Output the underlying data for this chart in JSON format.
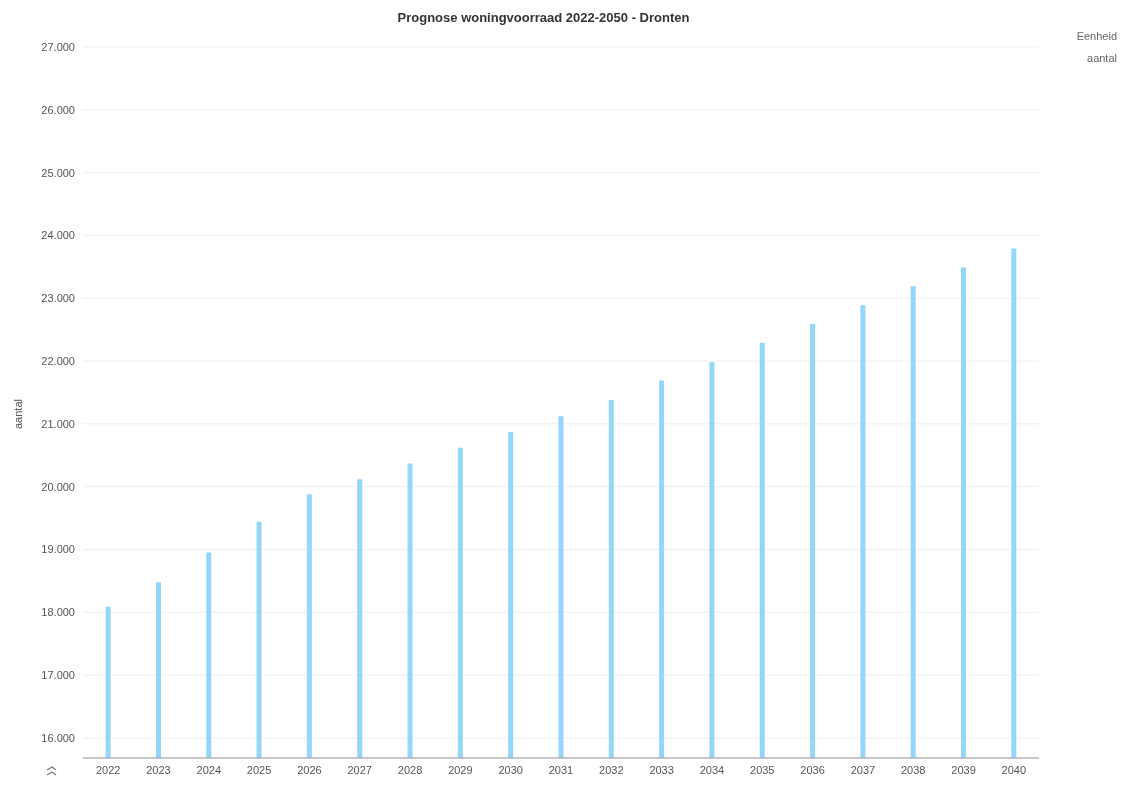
{
  "chart_data": {
    "type": "bar",
    "title": "Prognose woningvoorraad 2022-2050 - Dronten",
    "ylabel": "aantal",
    "annotations": [
      "Eenheid",
      "aantal"
    ],
    "categories": [
      "2022",
      "2023",
      "2024",
      "2025",
      "2026",
      "2027",
      "2028",
      "2029",
      "2030",
      "2031",
      "2032",
      "2033",
      "2034",
      "2035",
      "2036",
      "2037",
      "2038",
      "2039",
      "2040"
    ],
    "values": [
      18090,
      18480,
      18950,
      19440,
      19880,
      20120,
      20370,
      20620,
      20870,
      21120,
      21380,
      21690,
      21980,
      22290,
      22590,
      22890,
      23190,
      23490,
      23790
    ],
    "color": "#93d5fb",
    "ylim": [
      15680,
      27000
    ],
    "yticks": [
      {
        "value": 16000,
        "label": "16.000"
      },
      {
        "value": 17000,
        "label": "17.000"
      },
      {
        "value": 18000,
        "label": "18.000"
      },
      {
        "value": 19000,
        "label": "19.000"
      },
      {
        "value": 20000,
        "label": "20.000"
      },
      {
        "value": 21000,
        "label": "21.000"
      },
      {
        "value": 22000,
        "label": "22.000"
      },
      {
        "value": 23000,
        "label": "23.000"
      },
      {
        "value": 24000,
        "label": "24.000"
      },
      {
        "value": 25000,
        "label": "25.000"
      },
      {
        "value": 26000,
        "label": "26.000"
      },
      {
        "value": 27000,
        "label": "27.000"
      }
    ],
    "grid": "y"
  }
}
